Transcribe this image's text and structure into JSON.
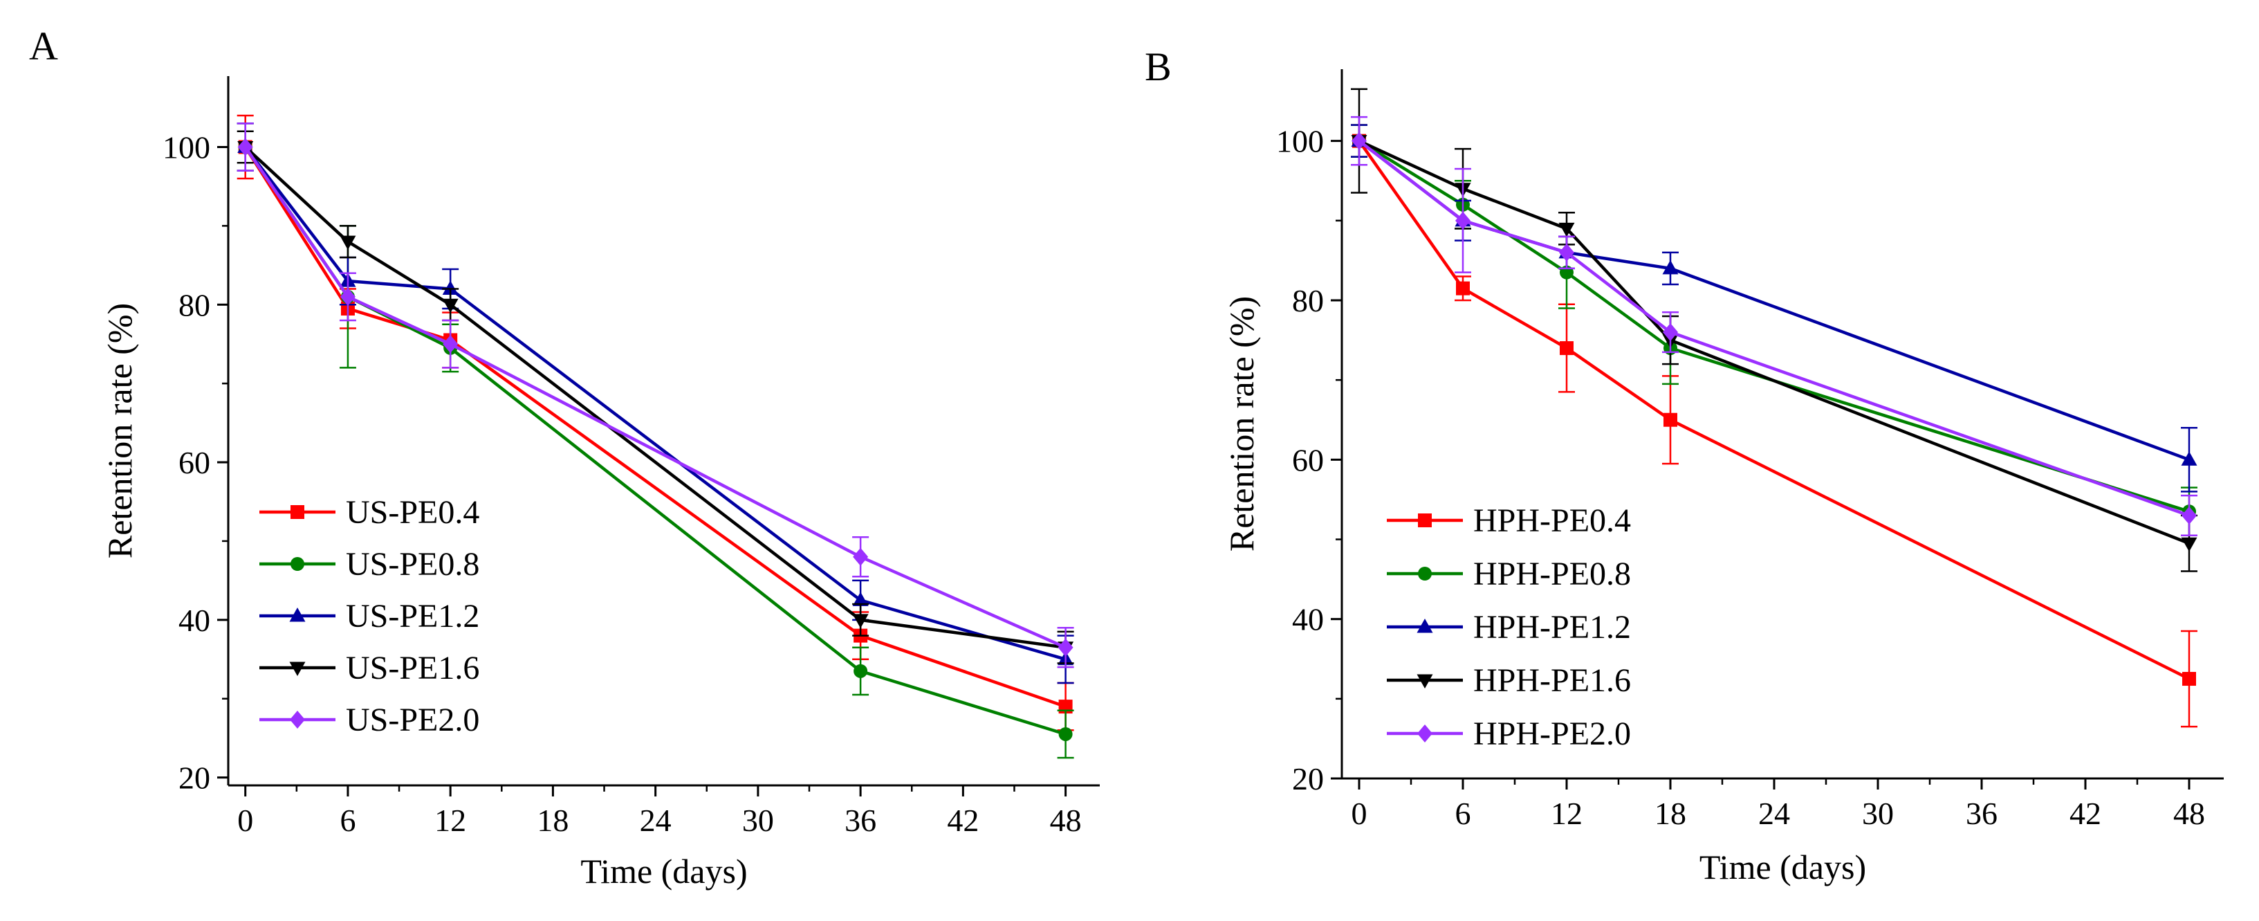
{
  "chart_data": [
    {
      "panel": "A",
      "type": "line",
      "title": "",
      "xlabel": "Time (days)",
      "ylabel": "Retention rate (%)",
      "xlim": [
        -1,
        50
      ],
      "ylim": [
        19,
        109
      ],
      "xticks": [
        0,
        6,
        12,
        18,
        24,
        30,
        36,
        42,
        48
      ],
      "yticks": [
        20,
        40,
        60,
        80,
        100
      ],
      "x": [
        0,
        6,
        12,
        36,
        48
      ],
      "grid": false,
      "legend": "lower-left",
      "series": [
        {
          "name": "US-PE0.4",
          "color": "#ff0000",
          "marker": "square",
          "values": [
            100,
            79.5,
            75.5,
            38,
            29
          ],
          "errors": [
            4,
            2.5,
            3.5,
            3,
            3
          ]
        },
        {
          "name": "US-PE0.8",
          "color": "#008000",
          "marker": "circle",
          "values": [
            100,
            81,
            74.5,
            33.5,
            25.5
          ],
          "errors": [
            3,
            9,
            3,
            3,
            3
          ]
        },
        {
          "name": "US-PE1.2",
          "color": "#0000a0",
          "marker": "triangle-up",
          "values": [
            100,
            83,
            82,
            42.5,
            35
          ],
          "errors": [
            3,
            3,
            2.5,
            2.5,
            3
          ]
        },
        {
          "name": "US-PE1.6",
          "color": "#000000",
          "marker": "triangle-down",
          "values": [
            100,
            88,
            80,
            40,
            36.5
          ],
          "errors": [
            2,
            2,
            2,
            2,
            2
          ]
        },
        {
          "name": "US-PE2.0",
          "color": "#9b30ff",
          "marker": "diamond",
          "values": [
            100,
            81,
            75,
            48,
            36.5
          ],
          "errors": [
            3,
            3,
            3,
            2.5,
            2.5
          ]
        }
      ]
    },
    {
      "panel": "B",
      "type": "line",
      "title": "",
      "xlabel": "Time (days)",
      "ylabel": "Retention rate (%)",
      "xlim": [
        -1,
        50
      ],
      "ylim": [
        20,
        109
      ],
      "xticks": [
        0,
        6,
        12,
        18,
        24,
        30,
        36,
        42,
        48
      ],
      "yticks": [
        20,
        40,
        60,
        80,
        100
      ],
      "x": [
        0,
        6,
        12,
        18,
        48
      ],
      "grid": false,
      "legend": "lower-left",
      "series": [
        {
          "name": "HPH-PE0.4",
          "color": "#ff0000",
          "marker": "square",
          "values": [
            100,
            81.5,
            74,
            65,
            32.5
          ],
          "errors": [
            2,
            1.5,
            5.5,
            5.5,
            6
          ]
        },
        {
          "name": "HPH-PE0.8",
          "color": "#008000",
          "marker": "circle",
          "values": [
            100,
            92,
            83.5,
            74,
            53.5
          ],
          "errors": [
            2,
            3,
            4.5,
            4.5,
            3
          ]
        },
        {
          "name": "HPH-PE1.2",
          "color": "#0000a0",
          "marker": "triangle-up",
          "values": [
            100,
            90,
            86,
            84,
            60
          ],
          "errors": [
            2,
            2.5,
            2,
            2,
            4
          ]
        },
        {
          "name": "HPH-PE1.6",
          "color": "#000000",
          "marker": "triangle-down",
          "values": [
            100,
            94,
            89,
            75,
            49.5
          ],
          "errors": [
            6.5,
            5,
            2,
            3,
            3.5
          ]
        },
        {
          "name": "HPH-PE2.0",
          "color": "#9b30ff",
          "marker": "diamond",
          "values": [
            100,
            90,
            86,
            76,
            53
          ],
          "errors": [
            3,
            6.5,
            2,
            2.5,
            2.5
          ]
        }
      ]
    }
  ]
}
